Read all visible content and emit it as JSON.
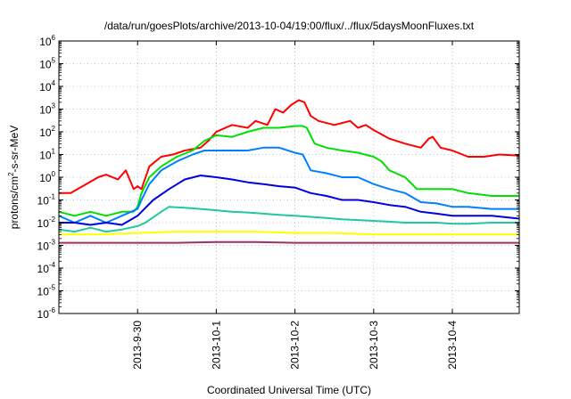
{
  "chart_data": {
    "type": "line",
    "title": "/data/run/goesPlots/archive/2013-10-04/19:00/flux/../flux/5daysMoonFluxes.txt",
    "xlabel": "Coordinated Universal Time (UTC)",
    "ylabel": {
      "prefix": "protons/cm",
      "superscript": "2",
      "suffix": "-s-sr-MeV"
    },
    "x_unit": "days since 2013-09-29 00:00 UTC",
    "xlim": [
      0.0,
      5.85
    ],
    "ylim": [
      -6,
      6
    ],
    "y_scale": "log",
    "y_tick_labels": [
      {
        "base": "10",
        "exp": "6"
      },
      {
        "base": "10",
        "exp": "5"
      },
      {
        "base": "10",
        "exp": "4"
      },
      {
        "base": "10",
        "exp": "3"
      },
      {
        "base": "10",
        "exp": "2"
      },
      {
        "base": "10",
        "exp": "1"
      },
      {
        "base": "10",
        "exp": "0"
      },
      {
        "base": "10",
        "exp": "-1"
      },
      {
        "base": "10",
        "exp": "-2"
      },
      {
        "base": "10",
        "exp": "-3"
      },
      {
        "base": "10",
        "exp": "-4"
      },
      {
        "base": "10",
        "exp": "-5"
      },
      {
        "base": "10",
        "exp": "-6"
      }
    ],
    "x_ticks": [
      {
        "label": "2013-9-30",
        "value": 1.0
      },
      {
        "label": "2013-10-1",
        "value": 2.0
      },
      {
        "label": "2013-10-2",
        "value": 3.0
      },
      {
        "label": "2013-10-3",
        "value": 4.0
      },
      {
        "label": "2013-10-4",
        "value": 5.0
      }
    ],
    "grid": true,
    "legend": "none",
    "series": [
      {
        "color": "#ff0000",
        "points": [
          [
            0.0,
            0.2
          ],
          [
            0.15,
            0.2
          ],
          [
            0.3,
            0.4
          ],
          [
            0.5,
            1.0
          ],
          [
            0.6,
            1.3
          ],
          [
            0.75,
            0.8
          ],
          [
            0.85,
            2.0
          ],
          [
            0.95,
            0.3
          ],
          [
            1.0,
            0.4
          ],
          [
            1.05,
            0.3
          ],
          [
            1.15,
            3.0
          ],
          [
            1.3,
            8.0
          ],
          [
            1.45,
            10.0
          ],
          [
            1.6,
            15.0
          ],
          [
            1.8,
            20.0
          ],
          [
            1.9,
            40.0
          ],
          [
            2.0,
            100.0
          ],
          [
            2.2,
            200.0
          ],
          [
            2.4,
            150.0
          ],
          [
            2.5,
            300.0
          ],
          [
            2.65,
            200.0
          ],
          [
            2.75,
            1000.0
          ],
          [
            2.85,
            700.0
          ],
          [
            2.95,
            1500.0
          ],
          [
            3.05,
            2500.0
          ],
          [
            3.12,
            2000.0
          ],
          [
            3.2,
            500.0
          ],
          [
            3.3,
            300.0
          ],
          [
            3.5,
            200.0
          ],
          [
            3.7,
            300.0
          ],
          [
            3.8,
            150.0
          ],
          [
            3.9,
            200.0
          ],
          [
            4.0,
            120.0
          ],
          [
            4.2,
            50.0
          ],
          [
            4.4,
            30.0
          ],
          [
            4.6,
            20.0
          ],
          [
            4.7,
            50.0
          ],
          [
            4.75,
            60.0
          ],
          [
            4.85,
            20.0
          ],
          [
            5.0,
            15.0
          ],
          [
            5.2,
            8.0
          ],
          [
            5.4,
            8.0
          ],
          [
            5.6,
            10.0
          ],
          [
            5.85,
            9.0
          ]
        ]
      },
      {
        "color": "#00e000",
        "points": [
          [
            0.0,
            0.03
          ],
          [
            0.2,
            0.02
          ],
          [
            0.4,
            0.03
          ],
          [
            0.6,
            0.02
          ],
          [
            0.8,
            0.03
          ],
          [
            0.95,
            0.03
          ],
          [
            1.0,
            0.05
          ],
          [
            1.05,
            0.2
          ],
          [
            1.15,
            1.0
          ],
          [
            1.3,
            3.0
          ],
          [
            1.5,
            8.0
          ],
          [
            1.7,
            15.0
          ],
          [
            1.85,
            40.0
          ],
          [
            2.0,
            70.0
          ],
          [
            2.2,
            60.0
          ],
          [
            2.4,
            100.0
          ],
          [
            2.6,
            150.0
          ],
          [
            2.8,
            150.0
          ],
          [
            3.0,
            180.0
          ],
          [
            3.1,
            180.0
          ],
          [
            3.15,
            150.0
          ],
          [
            3.25,
            30.0
          ],
          [
            3.4,
            20.0
          ],
          [
            3.6,
            15.0
          ],
          [
            3.8,
            12.0
          ],
          [
            4.0,
            8.0
          ],
          [
            4.1,
            5.0
          ],
          [
            4.2,
            2.0
          ],
          [
            4.4,
            1.0
          ],
          [
            4.55,
            0.3
          ],
          [
            4.8,
            0.3
          ],
          [
            5.0,
            0.3
          ],
          [
            5.2,
            0.2
          ],
          [
            5.5,
            0.15
          ],
          [
            5.85,
            0.15
          ]
        ]
      },
      {
        "color": "#0080ff",
        "points": [
          [
            0.0,
            0.02
          ],
          [
            0.2,
            0.01
          ],
          [
            0.4,
            0.02
          ],
          [
            0.6,
            0.01
          ],
          [
            0.8,
            0.02
          ],
          [
            1.0,
            0.04
          ],
          [
            1.05,
            0.1
          ],
          [
            1.15,
            0.5
          ],
          [
            1.3,
            2.0
          ],
          [
            1.5,
            5.0
          ],
          [
            1.7,
            10.0
          ],
          [
            1.85,
            15.0
          ],
          [
            2.0,
            15.0
          ],
          [
            2.2,
            15.0
          ],
          [
            2.4,
            15.0
          ],
          [
            2.6,
            20.0
          ],
          [
            2.8,
            20.0
          ],
          [
            3.0,
            12.0
          ],
          [
            3.1,
            10.0
          ],
          [
            3.2,
            2.0
          ],
          [
            3.4,
            1.5
          ],
          [
            3.6,
            1.0
          ],
          [
            3.8,
            1.0
          ],
          [
            4.0,
            0.5
          ],
          [
            4.2,
            0.3
          ],
          [
            4.4,
            0.2
          ],
          [
            4.6,
            0.08
          ],
          [
            4.8,
            0.07
          ],
          [
            5.0,
            0.05
          ],
          [
            5.2,
            0.05
          ],
          [
            5.5,
            0.04
          ],
          [
            5.85,
            0.04
          ]
        ]
      },
      {
        "color": "#0000e0",
        "points": [
          [
            0.0,
            0.01
          ],
          [
            0.2,
            0.01
          ],
          [
            0.4,
            0.008
          ],
          [
            0.6,
            0.01
          ],
          [
            0.8,
            0.008
          ],
          [
            1.0,
            0.02
          ],
          [
            1.05,
            0.03
          ],
          [
            1.2,
            0.1
          ],
          [
            1.4,
            0.3
          ],
          [
            1.6,
            0.8
          ],
          [
            1.8,
            1.2
          ],
          [
            2.0,
            1.0
          ],
          [
            2.2,
            0.8
          ],
          [
            2.4,
            0.6
          ],
          [
            2.6,
            0.5
          ],
          [
            2.8,
            0.4
          ],
          [
            3.0,
            0.35
          ],
          [
            3.2,
            0.2
          ],
          [
            3.4,
            0.15
          ],
          [
            3.6,
            0.1
          ],
          [
            3.8,
            0.1
          ],
          [
            4.0,
            0.08
          ],
          [
            4.2,
            0.06
          ],
          [
            4.4,
            0.05
          ],
          [
            4.6,
            0.03
          ],
          [
            4.8,
            0.025
          ],
          [
            5.0,
            0.02
          ],
          [
            5.2,
            0.02
          ],
          [
            5.5,
            0.02
          ],
          [
            5.85,
            0.015
          ]
        ]
      },
      {
        "color": "#20c8a0",
        "points": [
          [
            0.0,
            0.005
          ],
          [
            0.2,
            0.004
          ],
          [
            0.4,
            0.006
          ],
          [
            0.6,
            0.004
          ],
          [
            0.8,
            0.005
          ],
          [
            1.0,
            0.007
          ],
          [
            1.1,
            0.01
          ],
          [
            1.3,
            0.03
          ],
          [
            1.4,
            0.05
          ],
          [
            1.6,
            0.045
          ],
          [
            1.8,
            0.04
          ],
          [
            2.0,
            0.035
          ],
          [
            2.2,
            0.03
          ],
          [
            2.4,
            0.028
          ],
          [
            2.6,
            0.025
          ],
          [
            2.8,
            0.022
          ],
          [
            3.0,
            0.02
          ],
          [
            3.2,
            0.018
          ],
          [
            3.4,
            0.016
          ],
          [
            3.6,
            0.014
          ],
          [
            3.8,
            0.013
          ],
          [
            4.0,
            0.012
          ],
          [
            4.2,
            0.011
          ],
          [
            4.4,
            0.01
          ],
          [
            4.6,
            0.01
          ],
          [
            4.8,
            0.01
          ],
          [
            5.0,
            0.009
          ],
          [
            5.2,
            0.009
          ],
          [
            5.5,
            0.01
          ],
          [
            5.85,
            0.01
          ]
        ]
      },
      {
        "color": "#ffff00",
        "points": [
          [
            0.0,
            0.003
          ],
          [
            0.5,
            0.003
          ],
          [
            1.0,
            0.0035
          ],
          [
            1.5,
            0.004
          ],
          [
            2.0,
            0.004
          ],
          [
            2.5,
            0.004
          ],
          [
            3.0,
            0.0035
          ],
          [
            3.5,
            0.0035
          ],
          [
            4.0,
            0.003
          ],
          [
            4.5,
            0.003
          ],
          [
            5.0,
            0.003
          ],
          [
            5.5,
            0.003
          ],
          [
            5.85,
            0.003
          ]
        ]
      },
      {
        "color": "#a03060",
        "points": [
          [
            0.0,
            0.0013
          ],
          [
            0.5,
            0.0013
          ],
          [
            1.0,
            0.0013
          ],
          [
            1.5,
            0.0013
          ],
          [
            2.0,
            0.0014
          ],
          [
            2.5,
            0.0014
          ],
          [
            3.0,
            0.0013
          ],
          [
            3.5,
            0.0013
          ],
          [
            4.0,
            0.0013
          ],
          [
            4.5,
            0.0013
          ],
          [
            5.0,
            0.0013
          ],
          [
            5.5,
            0.0013
          ],
          [
            5.85,
            0.0013
          ]
        ]
      }
    ]
  }
}
